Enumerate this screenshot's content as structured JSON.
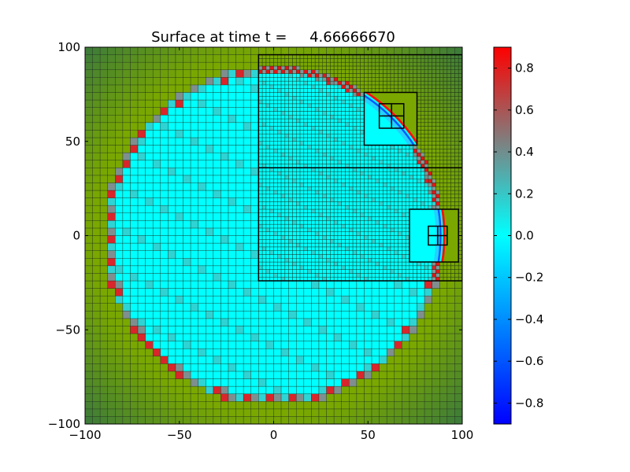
{
  "chart_data": {
    "type": "heatmap",
    "title": "Surface at time t =     4.66666670",
    "xlabel": "",
    "ylabel": "",
    "xlim": [
      -100,
      100
    ],
    "ylim": [
      -100,
      100
    ],
    "xticks": [
      -100,
      -50,
      0,
      50,
      100
    ],
    "yticks": [
      -100,
      -50,
      0,
      50,
      100
    ],
    "xtick_labels": [
      "−100",
      "−50",
      "0",
      "50",
      "100"
    ],
    "ytick_labels": [
      "−100",
      "−50",
      "0",
      "50",
      "100"
    ],
    "coarse_cell_size": 4,
    "shoreline_radius": 88,
    "wave_front_radius": 90.5,
    "refinement_patches": [
      {
        "level": 2,
        "x": [
          -8,
          100
        ],
        "y": [
          36,
          96
        ],
        "cell": 2
      },
      {
        "level": 2,
        "x": [
          -8,
          100
        ],
        "y": [
          -24,
          36
        ],
        "cell": 2
      },
      {
        "level": 3,
        "x": [
          48,
          76
        ],
        "y": [
          48,
          76
        ],
        "cell": 0
      },
      {
        "level": 3,
        "x": [
          72,
          98
        ],
        "y": [
          -14,
          14
        ],
        "cell": 0
      },
      {
        "level": 4,
        "x": [
          56,
          69
        ],
        "y": [
          57,
          70
        ],
        "cell": 6.5
      },
      {
        "level": 4,
        "x": [
          82,
          92
        ],
        "y": [
          -5,
          5
        ],
        "cell": 5
      }
    ],
    "colorbar": {
      "range": [
        -0.9,
        0.9
      ],
      "ticks": [
        -0.8,
        -0.6,
        -0.4,
        -0.2,
        0.0,
        0.2,
        0.4,
        0.6,
        0.8
      ],
      "tick_labels": [
        "−0.8",
        "−0.6",
        "−0.4",
        "−0.2",
        "0.0",
        "0.2",
        "0.4",
        "0.6",
        "0.8"
      ],
      "colors": [
        "#0000ff",
        "#00ffff",
        "#7f7f7f",
        "#ff0000"
      ]
    },
    "land_colors": [
      "#7aa800",
      "#3b7a3b"
    ]
  }
}
